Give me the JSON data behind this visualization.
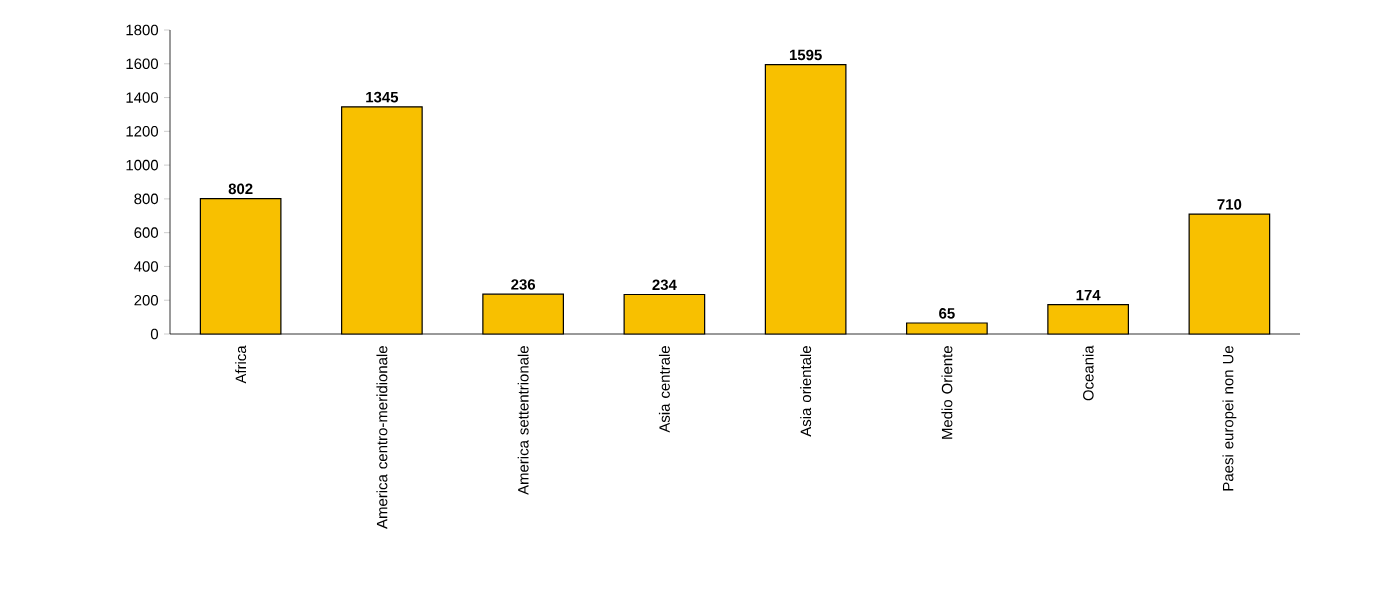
{
  "chart_data": {
    "type": "bar",
    "categories": [
      "Africa",
      "America centro-meridionale",
      "America settentrionale",
      "Asia centrale",
      "Asia orientale",
      "Medio Oriente",
      "Oceania",
      "Paesi europei non Ue"
    ],
    "values": [
      802,
      1345,
      236,
      234,
      1595,
      65,
      174,
      710
    ],
    "color": "#f8c000",
    "ylim": [
      0,
      1800
    ],
    "yticks": [
      0,
      200,
      400,
      600,
      800,
      1000,
      1200,
      1400,
      1600,
      1800
    ],
    "data_labels": true
  }
}
